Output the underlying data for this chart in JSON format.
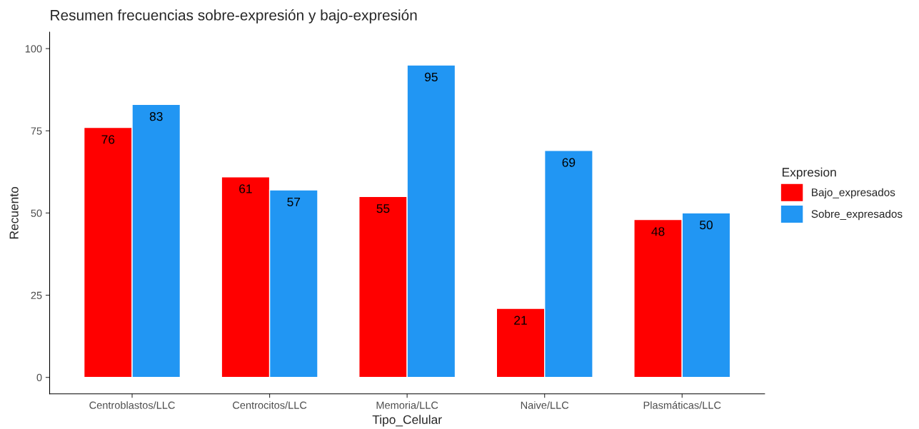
{
  "chart_data": {
    "type": "bar",
    "title": "Resumen frecuencias sobre-expresión y bajo-expresión",
    "xlabel": "Tipo_Celular",
    "ylabel": "Recuento",
    "legend_title": "Expresion",
    "categories": [
      "Centroblastos/LLC",
      "Centrocitos/LLC",
      "Memoria/LLC",
      "Naive/LLC",
      "Plasmáticas/LLC"
    ],
    "series": [
      {
        "name": "Bajo_expresados",
        "color": "#ff0000",
        "values": [
          76,
          61,
          55,
          21,
          48
        ]
      },
      {
        "name": "Sobre_expresados",
        "color": "#2196f3",
        "values": [
          83,
          57,
          95,
          69,
          50
        ]
      }
    ],
    "ylim": [
      -5,
      105
    ],
    "yticks": [
      0,
      25,
      50,
      75,
      100
    ],
    "grid": false,
    "legend": "right",
    "data_labels": true
  }
}
